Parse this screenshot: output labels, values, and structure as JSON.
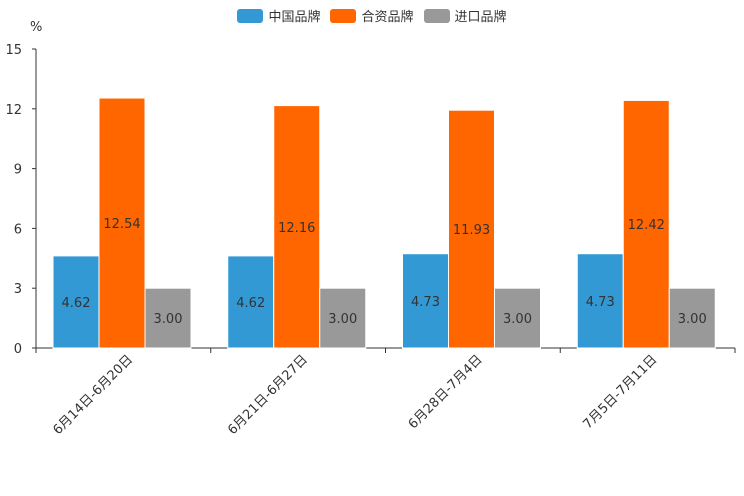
{
  "chart_data": {
    "type": "bar",
    "unit": "%",
    "categories": [
      "6月14日-6月20日",
      "6月21日-6月27日",
      "6月28日-7月4日",
      "7月5日-7月11日"
    ],
    "series": [
      {
        "name": "中国品牌",
        "color": "#3399d4",
        "values": [
          4.62,
          4.62,
          4.73,
          4.73
        ],
        "labels": [
          "4.62",
          "4.62",
          "4.73",
          "4.73"
        ]
      },
      {
        "name": "合资品牌",
        "color": "#ff6600",
        "values": [
          12.54,
          12.16,
          11.93,
          12.42
        ],
        "labels": [
          "12.54",
          "12.16",
          "11.93",
          "12.42"
        ]
      },
      {
        "name": "进口品牌",
        "color": "#999999",
        "values": [
          3.0,
          3.0,
          3.0,
          3.0
        ],
        "labels": [
          "3.00",
          "3.00",
          "3.00",
          "3.00"
        ]
      }
    ],
    "yticks": [
      "0",
      "3",
      "6",
      "9",
      "12",
      "15"
    ],
    "ylim": [
      0,
      15
    ],
    "legend_position": "top-center"
  }
}
